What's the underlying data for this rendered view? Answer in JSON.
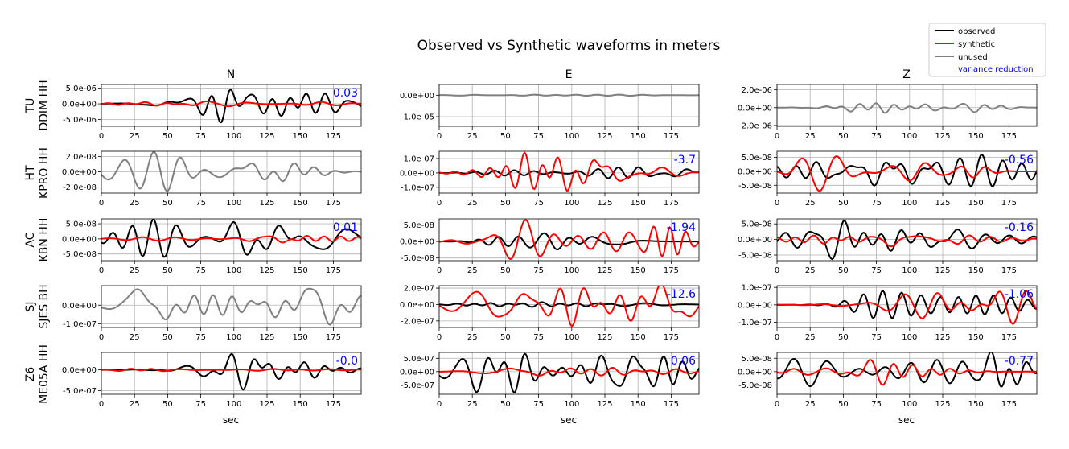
{
  "title": "Observed vs Synthetic waveforms in meters",
  "legend": {
    "items": [
      {
        "label": "observed",
        "color": "#000000"
      },
      {
        "label": "synthetic",
        "color": "#ff0000"
      },
      {
        "label": "unused",
        "color": "#808080"
      }
    ],
    "vr_label": "variance reduction",
    "vr_color": "#0000ff"
  },
  "columns": [
    "N",
    "E",
    "Z"
  ],
  "rows": [
    {
      "network": "TU",
      "station": "DDIM HH"
    },
    {
      "network": "HT",
      "station": "KPRO HH"
    },
    {
      "network": "AC",
      "station": "KBN HH"
    },
    {
      "network": "SJ",
      "station": "SJES BH"
    },
    {
      "network": "Z6",
      "station": "ME05A HH"
    }
  ],
  "xlabel": "sec",
  "xticks": [
    0,
    25,
    50,
    75,
    100,
    125,
    150,
    175
  ],
  "chart_data": {
    "type": "line",
    "xlim": [
      0,
      196
    ],
    "grid": true,
    "legend_position": "top-right",
    "panels": [
      {
        "id": "p00",
        "row": 0,
        "col": 0,
        "ylim": [
          -7.2e-06,
          6.2e-06
        ],
        "yticks": [
          -5e-06,
          0,
          5e-06
        ],
        "ytick_labels": [
          "-5.0e-06",
          "0.0e+00",
          "5.0e-06"
        ],
        "vr": "0.03",
        "used": true,
        "obs_amp": 6e-06,
        "syn_amp": 8e-07,
        "seed": 1
      },
      {
        "id": "p01",
        "row": 0,
        "col": 1,
        "ylim": [
          -1.45e-05,
          5e-06
        ],
        "yticks": [
          -1e-05,
          0
        ],
        "ytick_labels": [
          "-1.0e-05",
          "0.0e+00"
        ],
        "vr": "",
        "used": false,
        "obs_amp": 3e-07,
        "syn_amp": 0,
        "seed": 2
      },
      {
        "id": "p02",
        "row": 0,
        "col": 2,
        "ylim": [
          -2.1e-06,
          2.6e-06
        ],
        "yticks": [
          -2e-06,
          0,
          2e-06
        ],
        "ytick_labels": [
          "-2.0e-06",
          "0.0e+00",
          "2.0e-06"
        ],
        "vr": "",
        "used": false,
        "obs_amp": 6e-07,
        "syn_amp": 0,
        "seed": 3
      },
      {
        "id": "p10",
        "row": 1,
        "col": 0,
        "ylim": [
          -2.8e-08,
          2.7e-08
        ],
        "yticks": [
          -2e-08,
          0,
          2e-08
        ],
        "ytick_labels": [
          "-2.0e-08",
          "0.0e+00",
          "2.0e-08"
        ],
        "vr": "",
        "used": false,
        "obs_amp": 2.6e-08,
        "syn_amp": 0,
        "seed": 4
      },
      {
        "id": "p11",
        "row": 1,
        "col": 1,
        "ylim": [
          -1.4e-07,
          1.5e-07
        ],
        "yticks": [
          -1e-07,
          0,
          1e-07
        ],
        "ytick_labels": [
          "-1.0e-07",
          "0.0e+00",
          "1.0e-07"
        ],
        "vr": "-3.7",
        "used": true,
        "obs_amp": 4e-08,
        "syn_amp": 1.4e-07,
        "seed": 5
      },
      {
        "id": "p12",
        "row": 1,
        "col": 2,
        "ylim": [
          -7.8e-08,
          7.2e-08
        ],
        "yticks": [
          -5e-08,
          0,
          5e-08
        ],
        "ytick_labels": [
          "-5.0e-08",
          "0.0e+00",
          "5.0e-08"
        ],
        "vr": "-0.56",
        "used": true,
        "obs_amp": 6e-08,
        "syn_amp": 7e-08,
        "seed": 6
      },
      {
        "id": "p20",
        "row": 2,
        "col": 0,
        "ylim": [
          -7.2e-08,
          6.6e-08
        ],
        "yticks": [
          -5e-08,
          0,
          5e-08
        ],
        "ytick_labels": [
          "-5.0e-08",
          "0.0e+00",
          "5.0e-08"
        ],
        "vr": "0.01",
        "used": true,
        "obs_amp": 6.5e-08,
        "syn_amp": 1.2e-08,
        "seed": 7
      },
      {
        "id": "p21",
        "row": 2,
        "col": 1,
        "ylim": [
          -5.8e-08,
          6.8e-08
        ],
        "yticks": [
          -5e-08,
          0,
          5e-08
        ],
        "ytick_labels": [
          "-5.0e-08",
          "0.0e+00",
          "5.0e-08"
        ],
        "vr": "-1.94",
        "used": true,
        "obs_amp": 2.5e-08,
        "syn_amp": 6.5e-08,
        "seed": 8
      },
      {
        "id": "p22",
        "row": 2,
        "col": 2,
        "ylim": [
          -6.8e-08,
          6.6e-08
        ],
        "yticks": [
          -5e-08,
          0,
          5e-08
        ],
        "ytick_labels": [
          "-5.0e-08",
          "0.0e+00",
          "5.0e-08"
        ],
        "vr": "-0.16",
        "used": true,
        "obs_amp": 6.3e-08,
        "syn_amp": 2.2e-08,
        "seed": 9
      },
      {
        "id": "p30",
        "row": 3,
        "col": 0,
        "ylim": [
          -1.2e-07,
          1.05e-07
        ],
        "yticks": [
          -1e-07,
          0
        ],
        "ytick_labels": [
          "-1.0e-07",
          "0.0e+00"
        ],
        "vr": "",
        "used": false,
        "obs_amp": 1.05e-07,
        "syn_amp": 0,
        "seed": 10
      },
      {
        "id": "p31",
        "row": 3,
        "col": 1,
        "ylim": [
          -2.8e-07,
          2.3e-07
        ],
        "yticks": [
          -2e-07,
          0,
          2e-07
        ],
        "ytick_labels": [
          "-2.0e-07",
          "0.0e+00",
          "2.0e-07"
        ],
        "vr": "-12.6",
        "used": true,
        "obs_amp": 3e-08,
        "syn_amp": 2.6e-07,
        "seed": 11
      },
      {
        "id": "p32",
        "row": 3,
        "col": 2,
        "ylim": [
          -1.3e-07,
          1.1e-07
        ],
        "yticks": [
          -1e-07,
          0,
          1e-07
        ],
        "ytick_labels": [
          "-1.0e-07",
          "0.0e+00",
          "1.0e-07"
        ],
        "vr": "-1.06",
        "used": true,
        "obs_amp": 8e-08,
        "syn_amp": 1.1e-07,
        "seed": 12
      },
      {
        "id": "p40",
        "row": 4,
        "col": 0,
        "ylim": [
          -5.9e-07,
          4.2e-07
        ],
        "yticks": [
          -5e-07,
          0
        ],
        "ytick_labels": [
          "-5.0e-07",
          "0.0e+00"
        ],
        "vr": "-0.0",
        "used": true,
        "obs_amp": 4.8e-07,
        "syn_amp": 3e-08,
        "seed": 13
      },
      {
        "id": "p41",
        "row": 4,
        "col": 1,
        "ylim": [
          -8.5e-07,
          7.2e-07
        ],
        "yticks": [
          -5e-07,
          0,
          5e-07
        ],
        "ytick_labels": [
          "-5.0e-07",
          "0.0e+00",
          "5.0e-07"
        ],
        "vr": "0.06",
        "used": true,
        "obs_amp": 7.8e-07,
        "syn_amp": 1.5e-07,
        "seed": 14
      },
      {
        "id": "p42",
        "row": 4,
        "col": 2,
        "ylim": [
          -8.5e-08,
          7.2e-08
        ],
        "yticks": [
          -5e-08,
          0,
          5e-08
        ],
        "ytick_labels": [
          "-5.0e-08",
          "0.0e+00",
          "5.0e-08"
        ],
        "vr": "-0.77",
        "used": true,
        "obs_amp": 7.5e-08,
        "syn_amp": 5e-08,
        "seed": 15
      }
    ]
  }
}
